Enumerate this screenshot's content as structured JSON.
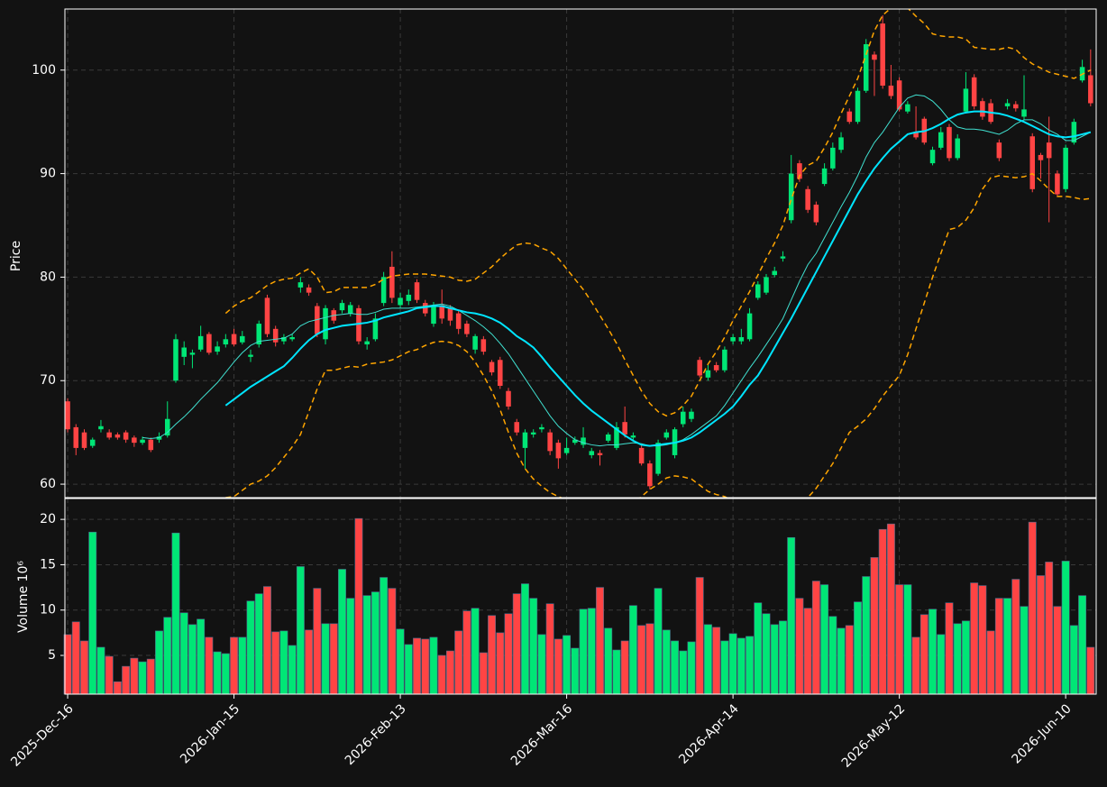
{
  "chart_data": {
    "type": "candlestick",
    "ylabel": "Price",
    "ylim": [
      58.7,
      105.9
    ],
    "yticks": [
      60,
      70,
      80,
      90,
      100
    ],
    "grid": true,
    "up_color": "#00e676",
    "down_color": "#ff4444",
    "categories": [
      "2025-Dec-16",
      null,
      null,
      null,
      null,
      null,
      null,
      null,
      null,
      null,
      null,
      null,
      null,
      null,
      null,
      null,
      null,
      null,
      null,
      null,
      "2026-Jan-15",
      null,
      null,
      null,
      null,
      null,
      null,
      null,
      null,
      null,
      null,
      null,
      null,
      null,
      null,
      null,
      null,
      null,
      null,
      null,
      "2026-Feb-13",
      null,
      null,
      null,
      null,
      null,
      null,
      null,
      null,
      null,
      null,
      null,
      null,
      null,
      null,
      null,
      null,
      null,
      null,
      null,
      "2026-Mar-16",
      null,
      null,
      null,
      null,
      null,
      null,
      null,
      null,
      null,
      null,
      null,
      null,
      null,
      null,
      null,
      null,
      null,
      null,
      null,
      "2026-Apr-14",
      null,
      null,
      null,
      null,
      null,
      null,
      null,
      null,
      null,
      null,
      null,
      null,
      null,
      null,
      null,
      null,
      null,
      null,
      null,
      "2026-May-12",
      null,
      null,
      null,
      null,
      null,
      null,
      null,
      null,
      null,
      null,
      null,
      null,
      null,
      null,
      null,
      null,
      null,
      null,
      null,
      "2026-Jun-10",
      null,
      null,
      null
    ],
    "open": [
      68,
      65.5,
      65,
      63.7,
      65.3,
      65,
      64.8,
      65,
      64.5,
      64,
      64.3,
      64.3,
      64.7,
      70,
      72.3,
      72.5,
      73,
      74.5,
      72.8,
      73.5,
      74.5,
      73.7,
      72.3,
      73.5,
      78,
      75,
      73.8,
      74,
      79,
      79,
      77.2,
      74,
      76.8,
      76.8,
      76.5,
      77,
      73.5,
      74,
      77.5,
      81,
      77.3,
      77.7,
      79.5,
      77.5,
      75.5,
      77.3,
      77,
      76.5,
      75.5,
      73,
      74,
      71.8,
      72,
      69,
      66,
      63.5,
      64.8,
      65.3,
      65,
      64,
      63,
      64,
      63.8,
      62.8,
      63,
      64.2,
      63.5,
      66,
      64.5,
      63.5,
      62,
      61,
      64.5,
      62.8,
      65.8,
      66.3,
      72,
      70.3,
      71.5,
      71,
      73.8,
      73.8,
      74,
      78,
      78.5,
      80.2,
      81.8,
      85.5,
      91,
      88.5,
      87,
      89,
      90.5,
      92.3,
      96,
      95,
      98,
      101.5,
      104.5,
      98.5,
      99,
      96,
      94,
      95.3,
      91,
      92.5,
      94.5,
      91.5,
      96,
      99.3,
      97,
      96.8,
      93,
      96.5,
      96.7,
      95.5,
      93.6,
      91.8,
      93,
      90,
      88.5,
      93,
      99,
      99.5
    ],
    "high": [
      68.3,
      65.8,
      65.3,
      64.5,
      66.2,
      65.3,
      65,
      65.2,
      64.7,
      64.6,
      64.5,
      65,
      68,
      74.5,
      73.8,
      73,
      75.3,
      74.7,
      73.8,
      74.5,
      75,
      74.8,
      73,
      75.8,
      78.3,
      75.3,
      74.5,
      74.5,
      80,
      79.3,
      77.5,
      77.3,
      77,
      77.8,
      77.6,
      77.3,
      74.2,
      76.5,
      80.5,
      82.5,
      78.5,
      78.8,
      79.8,
      77.8,
      77.6,
      78.8,
      77.3,
      76.8,
      75.8,
      74.5,
      74.3,
      72,
      72.3,
      69.3,
      66.3,
      65.3,
      65.3,
      65.8,
      65.3,
      64.3,
      64.5,
      64.6,
      65.5,
      63.5,
      63.3,
      65,
      66,
      67.5,
      65,
      63.8,
      62.3,
      64.3,
      65.3,
      65.5,
      67.5,
      67.3,
      72.3,
      71.5,
      71.8,
      73.3,
      74.5,
      75,
      77,
      79.6,
      80.3,
      81,
      82.5,
      91.8,
      91.3,
      88.8,
      87.3,
      91,
      93,
      94,
      96.3,
      98.3,
      103,
      101.8,
      105.3,
      100.5,
      99.3,
      97,
      96.5,
      95.5,
      92.6,
      94.5,
      94.8,
      93.8,
      99.8,
      99.6,
      97.3,
      97.2,
      93.3,
      97.2,
      97,
      99.5,
      93.9,
      92,
      95.5,
      90.3,
      92.8,
      95.3,
      101,
      102
    ],
    "low": [
      65,
      62.8,
      63.3,
      63.5,
      65,
      64.3,
      64.3,
      64,
      63.6,
      63.8,
      63.1,
      64,
      64.5,
      69.8,
      71.5,
      71.2,
      72.8,
      72.5,
      72.5,
      73.2,
      73.3,
      73.5,
      71.8,
      73.2,
      74.2,
      73.3,
      73.5,
      73.8,
      78.5,
      78.2,
      74.2,
      73.5,
      75.5,
      76.5,
      76.2,
      73.5,
      73,
      73.8,
      77.2,
      77.5,
      77,
      77.3,
      77.5,
      76.2,
      75.2,
      75.5,
      75.3,
      74.5,
      74.2,
      72.6,
      72.5,
      70.5,
      69.2,
      67.2,
      64.7,
      61.5,
      64.5,
      65,
      62.8,
      61.5,
      62.8,
      63.8,
      63.5,
      62.5,
      61.8,
      64,
      63.3,
      64.5,
      64.2,
      61.8,
      59.5,
      60.8,
      64.3,
      62.5,
      65.5,
      66,
      70.3,
      70,
      70.8,
      70.8,
      73.5,
      73.5,
      73.8,
      77.8,
      78.3,
      80,
      81.5,
      85.2,
      89.2,
      86.2,
      85,
      88.8,
      90.3,
      92,
      94.8,
      94.8,
      97.8,
      97.5,
      98.2,
      97.2,
      96,
      95.8,
      93.3,
      92.8,
      90.8,
      92.3,
      91.2,
      91.3,
      95.8,
      96.2,
      95.2,
      94.8,
      91.2,
      96.2,
      96,
      95.2,
      88.2,
      89.5,
      85.3,
      87.8,
      88.2,
      92.8,
      98.8,
      96.5
    ],
    "close": [
      65.3,
      63.5,
      63.5,
      64.3,
      65.6,
      64.5,
      64.5,
      64.3,
      64,
      64.3,
      63.3,
      64.6,
      66.3,
      74,
      73.2,
      72.7,
      74.3,
      72.7,
      73.3,
      74,
      73.5,
      74.3,
      72.5,
      75.5,
      74.5,
      73.7,
      74.2,
      74.2,
      79.5,
      78.5,
      74.5,
      77,
      75.8,
      77.5,
      77.3,
      73.8,
      73.8,
      76,
      80,
      78,
      78,
      78.3,
      77.8,
      76.5,
      77.3,
      76,
      75.8,
      75,
      74.5,
      74.3,
      72.8,
      70.8,
      69.5,
      67.5,
      65,
      65,
      65,
      65.5,
      63.2,
      62.5,
      63.5,
      64.3,
      64.5,
      63.2,
      62.8,
      64.8,
      65.5,
      64.8,
      64.7,
      62,
      59.8,
      64,
      65,
      65.3,
      67,
      67,
      70.5,
      71,
      71,
      73,
      74.2,
      74.2,
      76.5,
      79.3,
      80,
      80.6,
      82,
      90,
      89.5,
      86.5,
      85.3,
      90.5,
      92.5,
      93.5,
      95,
      98,
      102.5,
      101,
      98.5,
      97.5,
      96.2,
      96.7,
      93.5,
      93,
      92.3,
      94,
      91.5,
      93.4,
      98.2,
      96.5,
      95.5,
      95,
      91.5,
      96.8,
      96.3,
      96.2,
      88.5,
      91.3,
      91.5,
      88,
      92.5,
      95,
      100.3,
      96.8
    ],
    "overlays": [
      {
        "color": "#40e0d0",
        "style": "thin",
        "values": [
          null,
          null,
          null,
          null,
          null,
          null,
          null,
          null,
          null,
          64.5,
          64.4,
          64.5,
          65,
          65.8,
          66.5,
          67.3,
          68.2,
          69,
          69.8,
          70.8,
          71.8,
          72.7,
          73.4,
          73.8,
          73.9,
          74,
          74.1,
          74.5,
          75.3,
          75.7,
          75.9,
          76.1,
          76.3,
          76.4,
          76.5,
          76.4,
          76.4,
          76.6,
          76.9,
          77,
          77,
          77,
          77.1,
          77.2,
          77.3,
          77.4,
          77.2,
          76.8,
          76.3,
          75.8,
          75.2,
          74.5,
          73.6,
          72.6,
          71.4,
          70.2,
          69,
          67.8,
          66.6,
          65.6,
          64.9,
          64.3,
          64,
          63.8,
          63.7,
          63.8,
          63.8,
          63.9,
          64,
          63.9,
          63.7,
          63.7,
          63.8,
          64,
          64.3,
          64.8,
          65.4,
          66,
          66.6,
          67.6,
          68.8,
          70,
          71.2,
          72.3,
          73.5,
          74.7,
          76,
          77.8,
          79.6,
          81.2,
          82.3,
          83.8,
          85.3,
          86.8,
          88.2,
          89.8,
          91.6,
          93,
          94,
          95.2,
          96.4,
          97.3,
          97.6,
          97.5,
          97,
          96.2,
          95.2,
          94.5,
          94.3,
          94.3,
          94.2,
          94,
          93.8,
          94.2,
          94.8,
          95.2,
          95.2,
          94.8,
          94.2,
          93.8,
          93.2,
          93.2,
          93.6,
          94
        ]
      },
      {
        "color": "#00e5ff",
        "style": "thick",
        "values": [
          null,
          null,
          null,
          null,
          null,
          null,
          null,
          null,
          null,
          null,
          null,
          null,
          null,
          null,
          null,
          null,
          null,
          null,
          null,
          67.6,
          68.2,
          68.8,
          69.4,
          69.9,
          70.4,
          70.9,
          71.4,
          72.2,
          73.1,
          73.9,
          74.5,
          74.9,
          75.1,
          75.3,
          75.4,
          75.5,
          75.6,
          75.8,
          76.1,
          76.3,
          76.5,
          76.7,
          77,
          77.1,
          77.2,
          77.2,
          77,
          76.8,
          76.6,
          76.5,
          76.3,
          76,
          75.6,
          75,
          74.3,
          73.8,
          73.2,
          72.3,
          71.3,
          70.4,
          69.5,
          68.6,
          67.8,
          67.1,
          66.5,
          65.9,
          65.3,
          64.7,
          64.2,
          63.8,
          63.7,
          63.8,
          63.9,
          64,
          64.2,
          64.5,
          65,
          65.6,
          66.2,
          66.8,
          67.5,
          68.5,
          69.6,
          70.5,
          71.8,
          73.2,
          74.6,
          76,
          77.5,
          79,
          80.5,
          82,
          83.5,
          85,
          86.5,
          88,
          89.3,
          90.5,
          91.5,
          92.4,
          93.1,
          93.8,
          94,
          94.1,
          94.4,
          94.8,
          95.3,
          95.7,
          95.9,
          96,
          96,
          95.9,
          95.8,
          95.6,
          95.3,
          95,
          94.6,
          94.2,
          93.8,
          93.6,
          93.5,
          93.6,
          93.8,
          94
        ]
      },
      {
        "color": "#ffa500",
        "style": "dashed",
        "values": [
          null,
          null,
          null,
          null,
          null,
          null,
          null,
          null,
          null,
          null,
          null,
          null,
          null,
          null,
          null,
          null,
          null,
          null,
          null,
          76.5,
          77.2,
          77.7,
          78,
          78.6,
          79.2,
          79.6,
          79.8,
          79.9,
          80.4,
          80.8,
          80,
          78.5,
          78.6,
          79,
          79,
          79,
          79,
          79.3,
          79.8,
          80.1,
          80.2,
          80.3,
          80.3,
          80.3,
          80.2,
          80.1,
          80,
          79.7,
          79.6,
          79.8,
          80.4,
          81,
          81.8,
          82.5,
          83.1,
          83.3,
          83.2,
          82.8,
          82.5,
          81.8,
          80.8,
          79.8,
          78.8,
          77.6,
          76.3,
          75,
          73.6,
          72,
          70.5,
          69,
          67.8,
          67,
          66.6,
          66.9,
          67.6,
          68.5,
          70,
          71.6,
          72.8,
          74.2,
          75.8,
          77.2,
          78.6,
          80.2,
          81.8,
          83.3,
          85,
          87.5,
          89.8,
          90.8,
          91.2,
          92.5,
          94,
          95.8,
          97.5,
          99.2,
          101.5,
          103.8,
          105.3,
          106,
          106.5,
          106,
          105.2,
          104.5,
          103.5,
          103.3,
          103.2,
          103.2,
          103,
          102.2,
          102.1,
          102,
          102,
          102.2,
          102,
          101.2,
          100.6,
          100.2,
          99.8,
          99.6,
          99.4,
          99.2,
          99.6,
          100
        ]
      },
      {
        "color": "#ffa500",
        "style": "dashed",
        "values": [
          null,
          null,
          null,
          null,
          null,
          null,
          null,
          null,
          null,
          null,
          null,
          null,
          null,
          null,
          null,
          null,
          null,
          null,
          null,
          58.7,
          58.8,
          59.4,
          60,
          60.3,
          60.8,
          61.6,
          62.6,
          63.6,
          64.8,
          67,
          69.2,
          71,
          71,
          71.2,
          71.4,
          71.3,
          71.6,
          71.7,
          71.8,
          72,
          72.4,
          72.8,
          73,
          73.4,
          73.7,
          73.8,
          73.7,
          73.4,
          72.8,
          71.8,
          70.5,
          69,
          67.2,
          65,
          63,
          61.5,
          60.5,
          59.8,
          59.2,
          58.8,
          58.5,
          58.2,
          58,
          57.8,
          57.6,
          57.5,
          57.6,
          57.7,
          58.2,
          58.8,
          59.5,
          60,
          60.6,
          60.8,
          60.7,
          60.5,
          59.9,
          59.3,
          59,
          58.8,
          58.4,
          58,
          57.5,
          57,
          56.5,
          56,
          56,
          57,
          57.8,
          58.7,
          59.6,
          60.8,
          62,
          63.5,
          65,
          65.6,
          66.3,
          67.3,
          68.5,
          69.5,
          70.5,
          72.5,
          75,
          77.5,
          80,
          82.3,
          84.6,
          84.8,
          85.5,
          86.7,
          88.5,
          89.6,
          89.8,
          89.7,
          89.6,
          89.7,
          90,
          89.3,
          88.5,
          87.8,
          87.8,
          87.7,
          87.5,
          87.6
        ]
      }
    ],
    "volume": {
      "ylabel": "Volume  10⁶",
      "ylim": [
        0.73,
        22.3
      ],
      "yticks": [
        5,
        10,
        15,
        20
      ],
      "values": [
        7.3,
        8.7,
        6.6,
        18.6,
        5.9,
        4.9,
        2.1,
        3.8,
        4.7,
        4.3,
        4.6,
        7.7,
        9.2,
        18.5,
        9.7,
        8.4,
        9.0,
        7.0,
        5.4,
        5.2,
        7.0,
        7.0,
        11.0,
        11.8,
        12.6,
        7.6,
        7.7,
        6.1,
        14.8,
        7.8,
        12.4,
        8.5,
        8.5,
        14.5,
        11.3,
        20.1,
        11.6,
        12.0,
        13.6,
        12.4,
        7.9,
        6.2,
        6.9,
        6.8,
        7.0,
        5.0,
        5.5,
        7.7,
        9.9,
        10.2,
        5.3,
        9.4,
        7.5,
        9.6,
        11.8,
        12.9,
        11.3,
        7.3,
        10.7,
        6.8,
        7.2,
        5.8,
        10.1,
        10.2,
        12.5,
        8.0,
        5.6,
        6.6,
        10.5,
        8.3,
        8.5,
        12.4,
        7.8,
        6.6,
        5.5,
        6.5,
        13.6,
        8.4,
        8.1,
        6.6,
        7.4,
        6.9,
        7.1,
        10.8,
        9.6,
        8.4,
        8.8,
        18.0,
        11.3,
        10.2,
        13.2,
        12.8,
        9.3,
        8.0,
        8.3,
        10.9,
        13.7,
        15.8,
        18.9,
        19.5,
        12.8,
        12.8,
        7.0,
        9.5,
        10.1,
        7.3,
        10.8,
        8.5,
        8.8,
        13.0,
        12.7,
        7.7,
        11.3,
        11.3,
        13.4,
        10.4,
        19.7,
        13.8,
        15.3,
        10.4,
        15.4,
        8.3,
        11.6,
        5.9
      ]
    }
  }
}
